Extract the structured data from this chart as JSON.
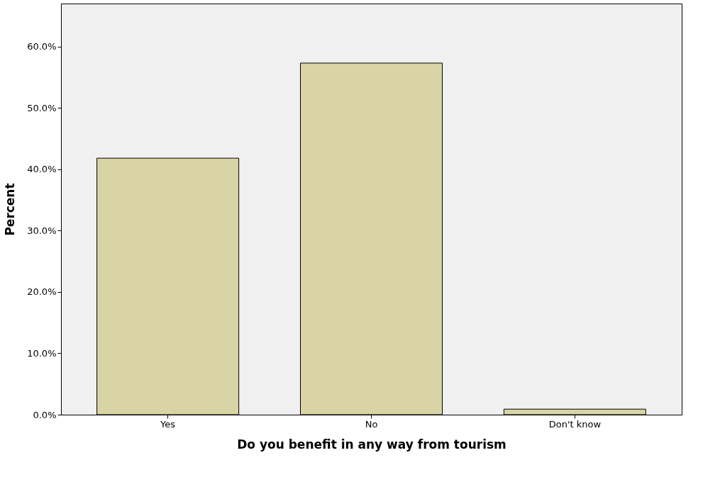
{
  "chart_data": {
    "type": "bar",
    "xlabel": "Do you benefit in any way from tourism",
    "ylabel": "Percent",
    "categories": [
      "Yes",
      "No",
      "Don't know"
    ],
    "values": [
      41.8,
      57.3,
      0.9
    ],
    "color": "#d9d4a5",
    "ylim": [
      0,
      67
    ],
    "yticks": [
      {
        "value": 0,
        "label": "0.0%"
      },
      {
        "value": 10,
        "label": "10.0%"
      },
      {
        "value": 20,
        "label": "20.0%"
      },
      {
        "value": 30,
        "label": "30.0%"
      },
      {
        "value": 40,
        "label": "40.0%"
      },
      {
        "value": 50,
        "label": "50.0%"
      },
      {
        "value": 60,
        "label": "60.0%"
      }
    ],
    "grid": false
  }
}
